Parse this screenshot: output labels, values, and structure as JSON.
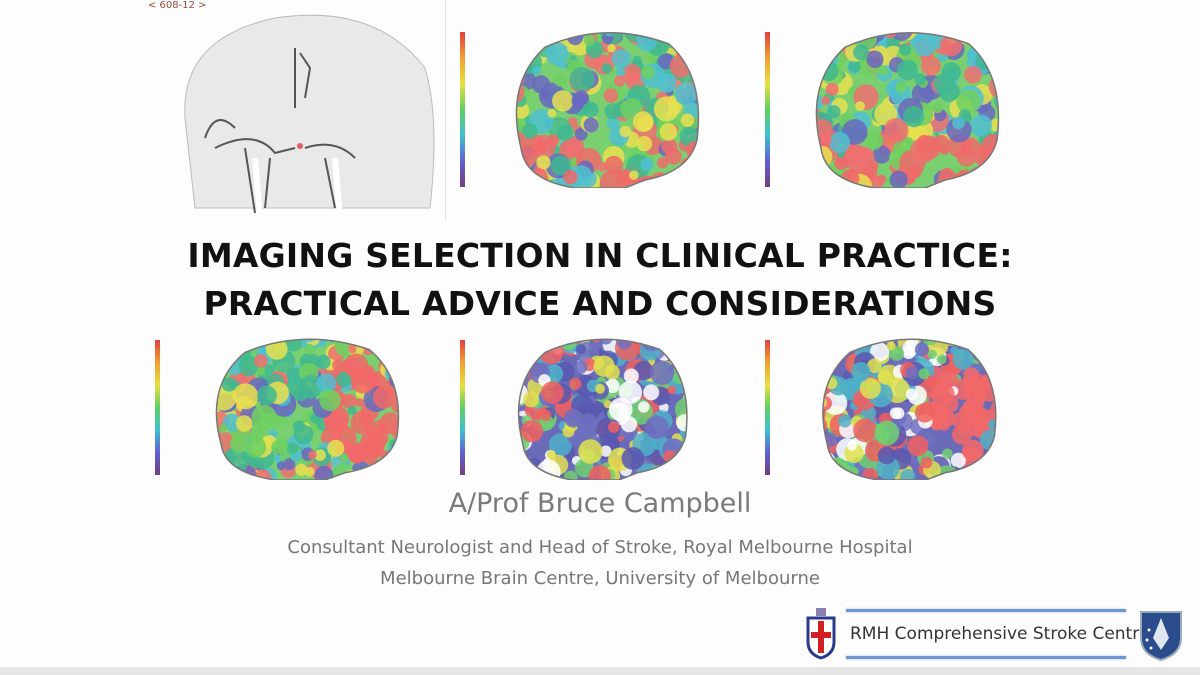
{
  "slide": {
    "image_label": "< 608-12 >",
    "title_line1": "IMAGING SELECTION IN CLINICAL PRACTICE:",
    "title_line2": "PRACTICAL ADVICE AND CONSIDERATIONS",
    "presenter": "A/Prof Bruce Campbell",
    "affiliation1": "Consultant Neurologist and Head of Stroke, Royal Melbourne Hospital",
    "affiliation2": "Melbourne Brain Centre, University of Melbourne",
    "footer_logo_text": "RMH Comprehensive Stroke Centre"
  },
  "images": [
    {
      "type": "angiogram"
    },
    {
      "type": "perfusion-map",
      "variant": "top-middle"
    },
    {
      "type": "perfusion-map",
      "variant": "top-right"
    },
    {
      "type": "perfusion-map",
      "variant": "bottom-left"
    },
    {
      "type": "perfusion-map",
      "variant": "bottom-middle"
    },
    {
      "type": "perfusion-map",
      "variant": "bottom-right"
    }
  ],
  "colors": {
    "accent_line": "#6f96d4",
    "title": "#111111",
    "subtitle": "#777777"
  }
}
